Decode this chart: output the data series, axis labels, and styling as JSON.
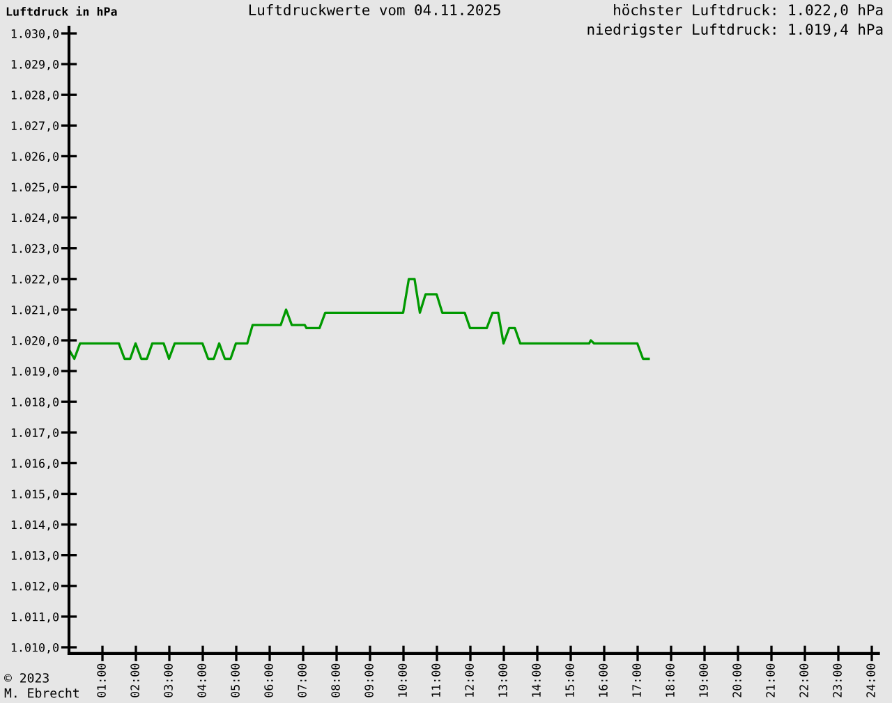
{
  "chart_data": {
    "type": "line",
    "title": "Luftdruckwerte vom 04.11.2025",
    "ylabel": "Luftdruck in hPa",
    "annotations": [
      "höchster Luftdruck: 1.022,0 hPa",
      "niedrigster Luftdruck: 1.019,4 hPa",
      "© 2023\nM. Ebrecht"
    ],
    "series": [
      {
        "color": "#009900",
        "x": [
          0,
          0.16,
          0.33,
          1.49,
          1.66,
          1.83,
          1.99,
          2.16,
          2.33,
          2.49,
          2.83,
          2.99,
          3.16,
          3.99,
          4.16,
          4.33,
          4.49,
          4.66,
          4.83,
          4.99,
          5.33,
          5.49,
          6.33,
          6.49,
          6.66,
          7.05,
          7.1,
          7.49,
          7.66,
          9.99,
          10.16,
          10.33,
          10.49,
          10.66,
          10.99,
          11.16,
          11.83,
          11.99,
          12.49,
          12.66,
          12.83,
          12.99,
          13.16,
          13.33,
          13.49,
          15.55,
          15.6,
          15.7,
          16.99,
          17.16,
          17.33
        ],
        "values": [
          1019.7,
          1019.4,
          1019.9,
          1019.9,
          1019.4,
          1019.4,
          1019.9,
          1019.4,
          1019.4,
          1019.9,
          1019.9,
          1019.4,
          1019.9,
          1019.9,
          1019.4,
          1019.4,
          1019.9,
          1019.4,
          1019.4,
          1019.9,
          1019.9,
          1020.5,
          1020.5,
          1021.0,
          1020.5,
          1020.5,
          1020.4,
          1020.4,
          1020.9,
          1020.9,
          1022.0,
          1022.0,
          1020.9,
          1021.5,
          1021.5,
          1020.9,
          1020.9,
          1020.4,
          1020.4,
          1020.9,
          1020.9,
          1019.9,
          1020.4,
          1020.4,
          1019.9,
          1019.9,
          1020.0,
          1019.9,
          1019.9,
          1019.4,
          1019.4
        ]
      }
    ],
    "xlim": [
      0,
      24.2
    ],
    "ylim": [
      1009.8,
      1030.2
    ],
    "xticks": [
      {
        "value": 1,
        "label": "01:00"
      },
      {
        "value": 2,
        "label": "02:00"
      },
      {
        "value": 3,
        "label": "03:00"
      },
      {
        "value": 4,
        "label": "04:00"
      },
      {
        "value": 5,
        "label": "05:00"
      },
      {
        "value": 6,
        "label": "06:00"
      },
      {
        "value": 7,
        "label": "07:00"
      },
      {
        "value": 8,
        "label": "08:00"
      },
      {
        "value": 9,
        "label": "09:00"
      },
      {
        "value": 10,
        "label": "10:00"
      },
      {
        "value": 11,
        "label": "11:00"
      },
      {
        "value": 12,
        "label": "12:00"
      },
      {
        "value": 13,
        "label": "13:00"
      },
      {
        "value": 14,
        "label": "14:00"
      },
      {
        "value": 15,
        "label": "15:00"
      },
      {
        "value": 16,
        "label": "16:00"
      },
      {
        "value": 17,
        "label": "17:00"
      },
      {
        "value": 18,
        "label": "18:00"
      },
      {
        "value": 19,
        "label": "19:00"
      },
      {
        "value": 20,
        "label": "20:00"
      },
      {
        "value": 21,
        "label": "21:00"
      },
      {
        "value": 22,
        "label": "22:00"
      },
      {
        "value": 23,
        "label": "23:00"
      },
      {
        "value": 24,
        "label": "24:00"
      }
    ],
    "yticks": [
      {
        "value": 1010,
        "label": "1.010,0"
      },
      {
        "value": 1011,
        "label": "1.011,0"
      },
      {
        "value": 1012,
        "label": "1.012,0"
      },
      {
        "value": 1013,
        "label": "1.013,0"
      },
      {
        "value": 1014,
        "label": "1.014,0"
      },
      {
        "value": 1015,
        "label": "1.015,0"
      },
      {
        "value": 1016,
        "label": "1.016,0"
      },
      {
        "value": 1017,
        "label": "1.017,0"
      },
      {
        "value": 1018,
        "label": "1.018,0"
      },
      {
        "value": 1019,
        "label": "1.019,0"
      },
      {
        "value": 1020,
        "label": "1.020,0"
      },
      {
        "value": 1021,
        "label": "1.021,0"
      },
      {
        "value": 1022,
        "label": "1.022,0"
      },
      {
        "value": 1023,
        "label": "1.023,0"
      },
      {
        "value": 1024,
        "label": "1.024,0"
      },
      {
        "value": 1025,
        "label": "1.025,0"
      },
      {
        "value": 1026,
        "label": "1.026,0"
      },
      {
        "value": 1027,
        "label": "1.027,0"
      },
      {
        "value": 1028,
        "label": "1.028,0"
      },
      {
        "value": 1029,
        "label": "1.029,0"
      },
      {
        "value": 1030,
        "label": "1.030,0"
      }
    ],
    "grid": false,
    "marker": "none",
    "line_style": "solid"
  }
}
